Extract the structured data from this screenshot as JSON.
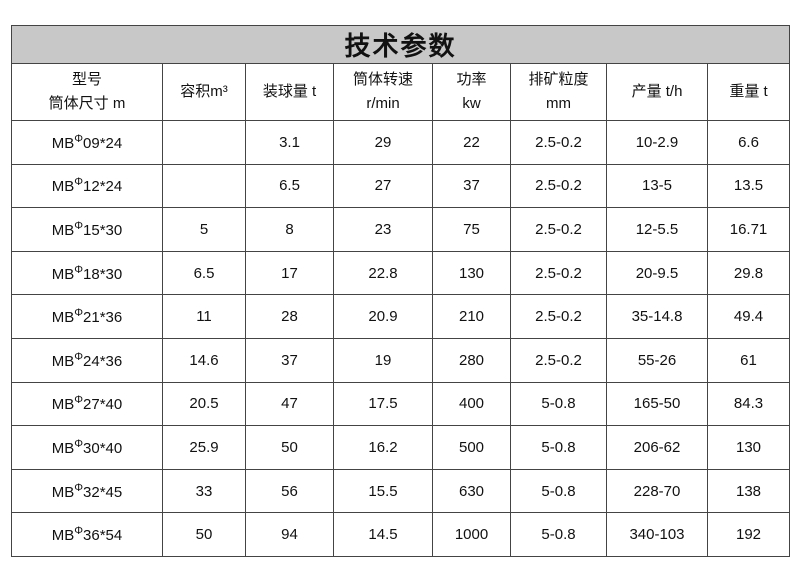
{
  "title": "技术参数",
  "headers": [
    [
      "型号",
      "筒体尺寸 m"
    ],
    [
      "容积m³"
    ],
    [
      "装球量 t"
    ],
    [
      "筒体转速",
      "r/min"
    ],
    [
      "功率",
      "kw"
    ],
    [
      "排矿粒度",
      "mm"
    ],
    [
      "产量 t/h"
    ],
    [
      "重量 t"
    ]
  ],
  "rows": [
    {
      "prefix": "MB",
      "phi": "Φ",
      "size": "09*24",
      "cells": [
        "",
        "3.1",
        "29",
        "22",
        "2.5-0.2",
        "10-2.9",
        "6.6"
      ]
    },
    {
      "prefix": "MB",
      "phi": "Φ",
      "size": "12*24",
      "cells": [
        "",
        "6.5",
        "27",
        "37",
        "2.5-0.2",
        "13-5",
        "13.5"
      ]
    },
    {
      "prefix": "MB",
      "phi": "Φ",
      "size": "15*30",
      "cells": [
        "5",
        "8",
        "23",
        "75",
        "2.5-0.2",
        "12-5.5",
        "16.71"
      ]
    },
    {
      "prefix": "MB",
      "phi": "Φ",
      "size": "18*30",
      "cells": [
        "6.5",
        "17",
        "22.8",
        "130",
        "2.5-0.2",
        "20-9.5",
        "29.8"
      ]
    },
    {
      "prefix": "MB",
      "phi": "Φ",
      "size": "21*36",
      "cells": [
        "11",
        "28",
        "20.9",
        "210",
        "2.5-0.2",
        "35-14.8",
        "49.4"
      ]
    },
    {
      "prefix": "MB",
      "phi": "Φ",
      "size": "24*36",
      "cells": [
        "14.6",
        "37",
        "19",
        "280",
        "2.5-0.2",
        "55-26",
        "61"
      ]
    },
    {
      "prefix": "MB",
      "phi": "Φ",
      "size": "27*40",
      "cells": [
        "20.5",
        "47",
        "17.5",
        "400",
        "5-0.8",
        "165-50",
        "84.3"
      ]
    },
    {
      "prefix": "MB",
      "phi": "Φ",
      "size": "30*40",
      "cells": [
        "25.9",
        "50",
        "16.2",
        "500",
        "5-0.8",
        "206-62",
        "130"
      ]
    },
    {
      "prefix": "MB",
      "phi": "Φ",
      "size": "32*45",
      "cells": [
        "33",
        "56",
        "15.5",
        "630",
        "5-0.8",
        "228-70",
        "138"
      ]
    },
    {
      "prefix": "MB",
      "phi": "Φ",
      "size": "36*54",
      "cells": [
        "50",
        "94",
        "14.5",
        "1000",
        "5-0.8",
        "340-103",
        "192"
      ]
    }
  ]
}
